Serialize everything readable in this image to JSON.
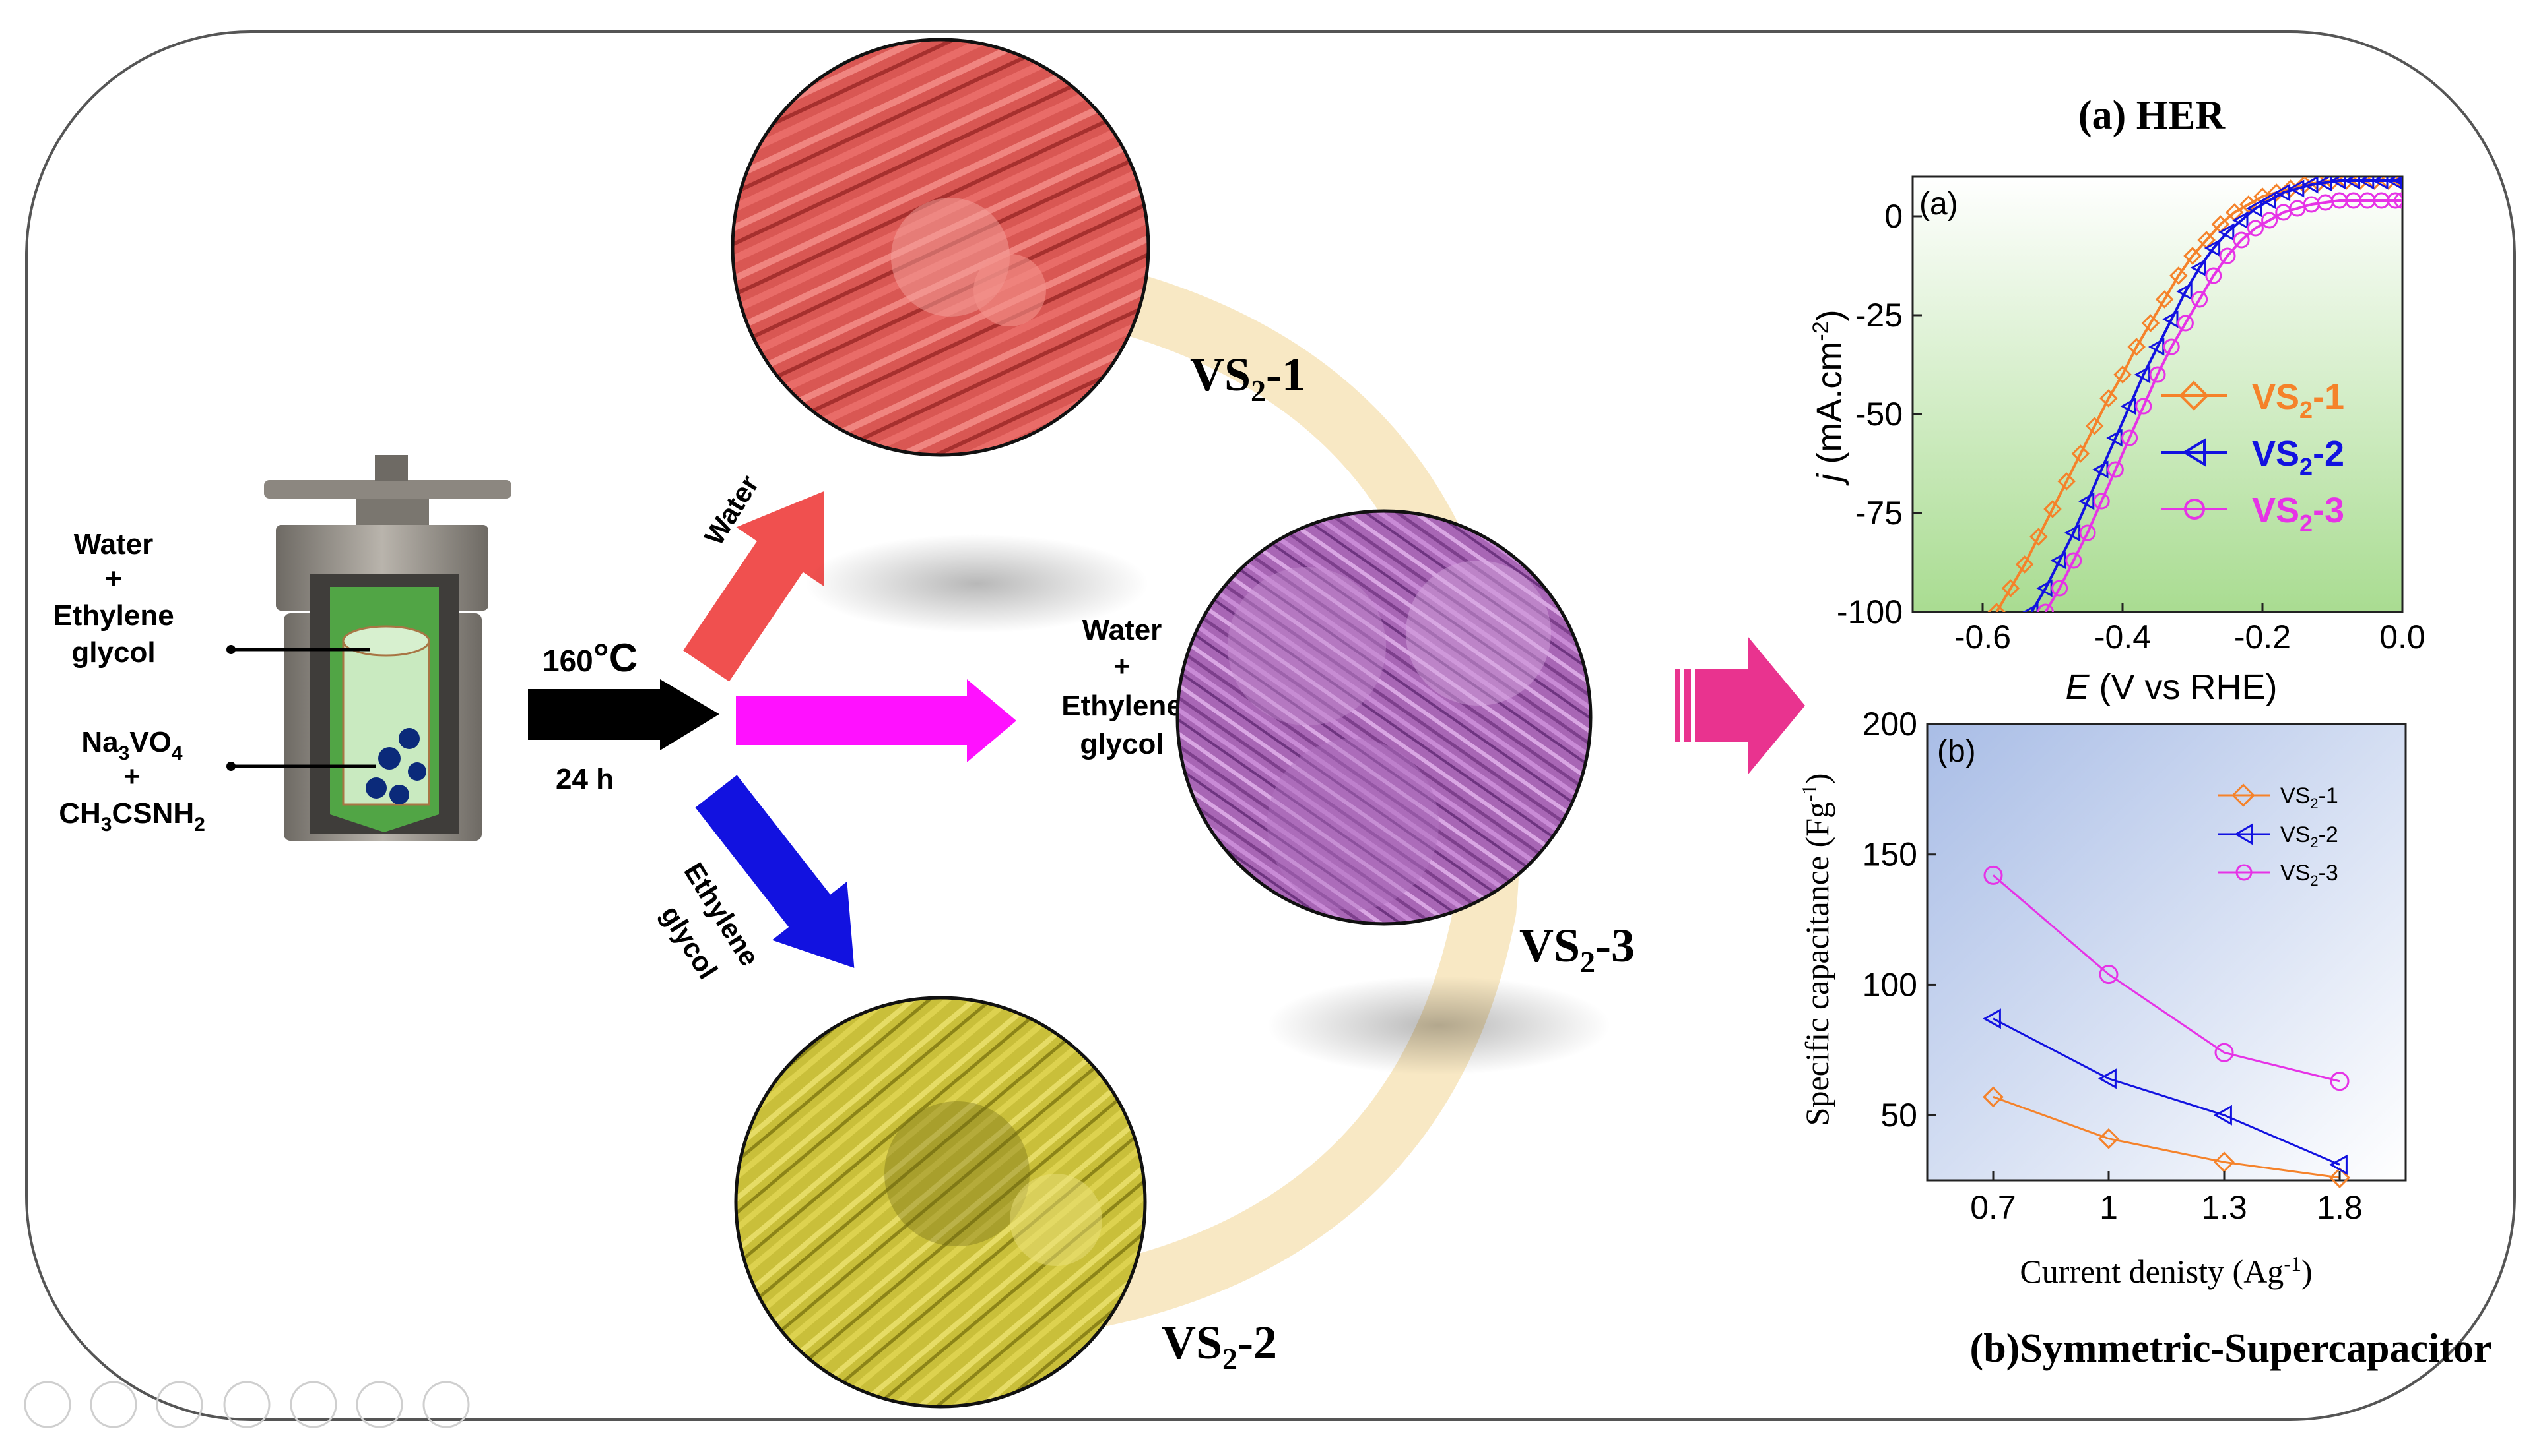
{
  "reactor": {
    "solvent_label": [
      "Water",
      "+",
      "Ethylene",
      "glycol"
    ],
    "precursor_label": {
      "na": "Na",
      "na_sub": "3",
      "vo": "VO",
      "vo_sub": "4",
      "plus": "+",
      "ch": "CH",
      "ch_sub1": "3",
      "csnh": "CSNH",
      "csnh_sub": "2"
    }
  },
  "conditions": {
    "temperature": "160",
    "temp_unit": "°C",
    "time": "24 h"
  },
  "arrows": {
    "water": "Water",
    "mixed": [
      "Water",
      "+",
      "Ethylene",
      "glycol"
    ],
    "eg": [
      "Ethylene",
      "glycol"
    ]
  },
  "samples": {
    "vs1": {
      "base": "VS",
      "sub": "2",
      "suffix": "-1"
    },
    "vs2": {
      "base": "VS",
      "sub": "2",
      "suffix": "-2"
    },
    "vs3": {
      "base": "VS",
      "sub": "2",
      "suffix": "-3"
    }
  },
  "colors": {
    "vs1": "#f5822a",
    "vs2": "#1212e0",
    "vs3": "#e633e6",
    "red_arrow": "#f0504f",
    "pink_arrow": "#ff11ff",
    "blue_arrow": "#1212e0",
    "magenta_arrow": "#e9338f"
  },
  "chart_her": {
    "heading": "(a) HER",
    "panel_tag": "(a)",
    "ylabel_j": "j",
    "ylabel_rest": " (mA.cm",
    "ylabel_sup": "-2",
    "ylabel_close": ")",
    "xlabel_e": "E",
    "xlabel_rest": " (V vs RHE)",
    "legend": [
      {
        "base": "VS",
        "sub": "2",
        "suffix": "-1"
      },
      {
        "base": "VS",
        "sub": "2",
        "suffix": "-2"
      },
      {
        "base": "VS",
        "sub": "2",
        "suffix": "-3"
      }
    ]
  },
  "chart_sc": {
    "heading": "(b)Symmetric-Supercapacitor",
    "panel_tag": "(b)",
    "ylabel": "Specific capacitance (Fg",
    "ylabel_sup": "-1",
    "ylabel_close": ")",
    "xlabel": "Current denisty (Ag",
    "xlabel_sup": "-1",
    "xlabel_close": ")",
    "legend": [
      {
        "base": "VS",
        "sub": "2",
        "suffix": "-1"
      },
      {
        "base": "VS",
        "sub": "2",
        "suffix": "-2"
      },
      {
        "base": "VS",
        "sub": "2",
        "suffix": "-3"
      }
    ]
  },
  "chart_data": [
    {
      "type": "line",
      "xlim": [
        -0.7,
        0.0
      ],
      "ylim": [
        -100,
        10
      ],
      "x_ticks": [
        -0.6,
        -0.4,
        -0.2,
        0.0
      ],
      "x_tick_labels": [
        "-0.6",
        "-0.4",
        "-0.2",
        "0.0"
      ],
      "y_ticks": [
        0,
        -25,
        -50,
        -75,
        -100
      ],
      "y_tick_labels": [
        "0",
        "-25",
        "-50",
        "-75",
        "-100"
      ],
      "series": [
        {
          "x": [
            -0.58,
            -0.56,
            -0.54,
            -0.52,
            -0.5,
            -0.48,
            -0.46,
            -0.44,
            -0.42,
            -0.4,
            -0.38,
            -0.36,
            -0.34,
            -0.32,
            -0.3,
            -0.28,
            -0.26,
            -0.24,
            -0.22,
            -0.2,
            -0.18,
            -0.16,
            -0.14,
            -0.12,
            -0.1,
            -0.08,
            -0.06,
            -0.04,
            -0.02,
            0.0
          ],
          "y": [
            -100,
            -94,
            -88,
            -81,
            -74,
            -67,
            -60,
            -53,
            -46,
            -40,
            -33,
            -27,
            -21,
            -15,
            -10,
            -6,
            -2,
            1,
            3,
            5,
            6,
            7,
            8,
            8.5,
            9,
            9,
            9,
            9,
            9,
            9
          ]
        },
        {
          "x": [
            -0.53,
            -0.51,
            -0.49,
            -0.47,
            -0.45,
            -0.43,
            -0.41,
            -0.39,
            -0.37,
            -0.35,
            -0.33,
            -0.31,
            -0.29,
            -0.27,
            -0.25,
            -0.23,
            -0.21,
            -0.19,
            -0.17,
            -0.15,
            -0.13,
            -0.11,
            -0.09,
            -0.07,
            -0.05,
            -0.03,
            -0.01,
            0.0
          ],
          "y": [
            -100,
            -94,
            -87,
            -80,
            -72,
            -64,
            -56,
            -48,
            -40,
            -33,
            -26,
            -19,
            -13,
            -8,
            -4,
            -1,
            2,
            4,
            6,
            7,
            8,
            8.5,
            9,
            9,
            9,
            9,
            9,
            9
          ]
        },
        {
          "x": [
            -0.51,
            -0.49,
            -0.47,
            -0.45,
            -0.43,
            -0.41,
            -0.39,
            -0.37,
            -0.35,
            -0.33,
            -0.31,
            -0.29,
            -0.27,
            -0.25,
            -0.23,
            -0.21,
            -0.19,
            -0.17,
            -0.15,
            -0.13,
            -0.11,
            -0.09,
            -0.07,
            -0.05,
            -0.03,
            -0.01,
            0.0
          ],
          "y": [
            -100,
            -94,
            -87,
            -80,
            -72,
            -64,
            -56,
            -48,
            -40,
            -33,
            -27,
            -21,
            -15,
            -10,
            -6,
            -3,
            -1,
            1,
            2,
            3,
            3.5,
            4,
            4,
            4,
            4,
            4,
            4
          ]
        }
      ]
    },
    {
      "type": "line",
      "categories": [
        "0.7",
        "1",
        "1.3",
        "1.8"
      ],
      "ylim": [
        25,
        200
      ],
      "y_ticks": [
        50,
        100,
        150,
        200
      ],
      "y_tick_labels": [
        "50",
        "100",
        "150",
        "200"
      ],
      "series": [
        {
          "values": [
            57,
            41,
            32,
            26
          ]
        },
        {
          "values": [
            87,
            64,
            50,
            31
          ]
        },
        {
          "values": [
            142,
            104,
            74,
            63
          ]
        }
      ]
    }
  ]
}
